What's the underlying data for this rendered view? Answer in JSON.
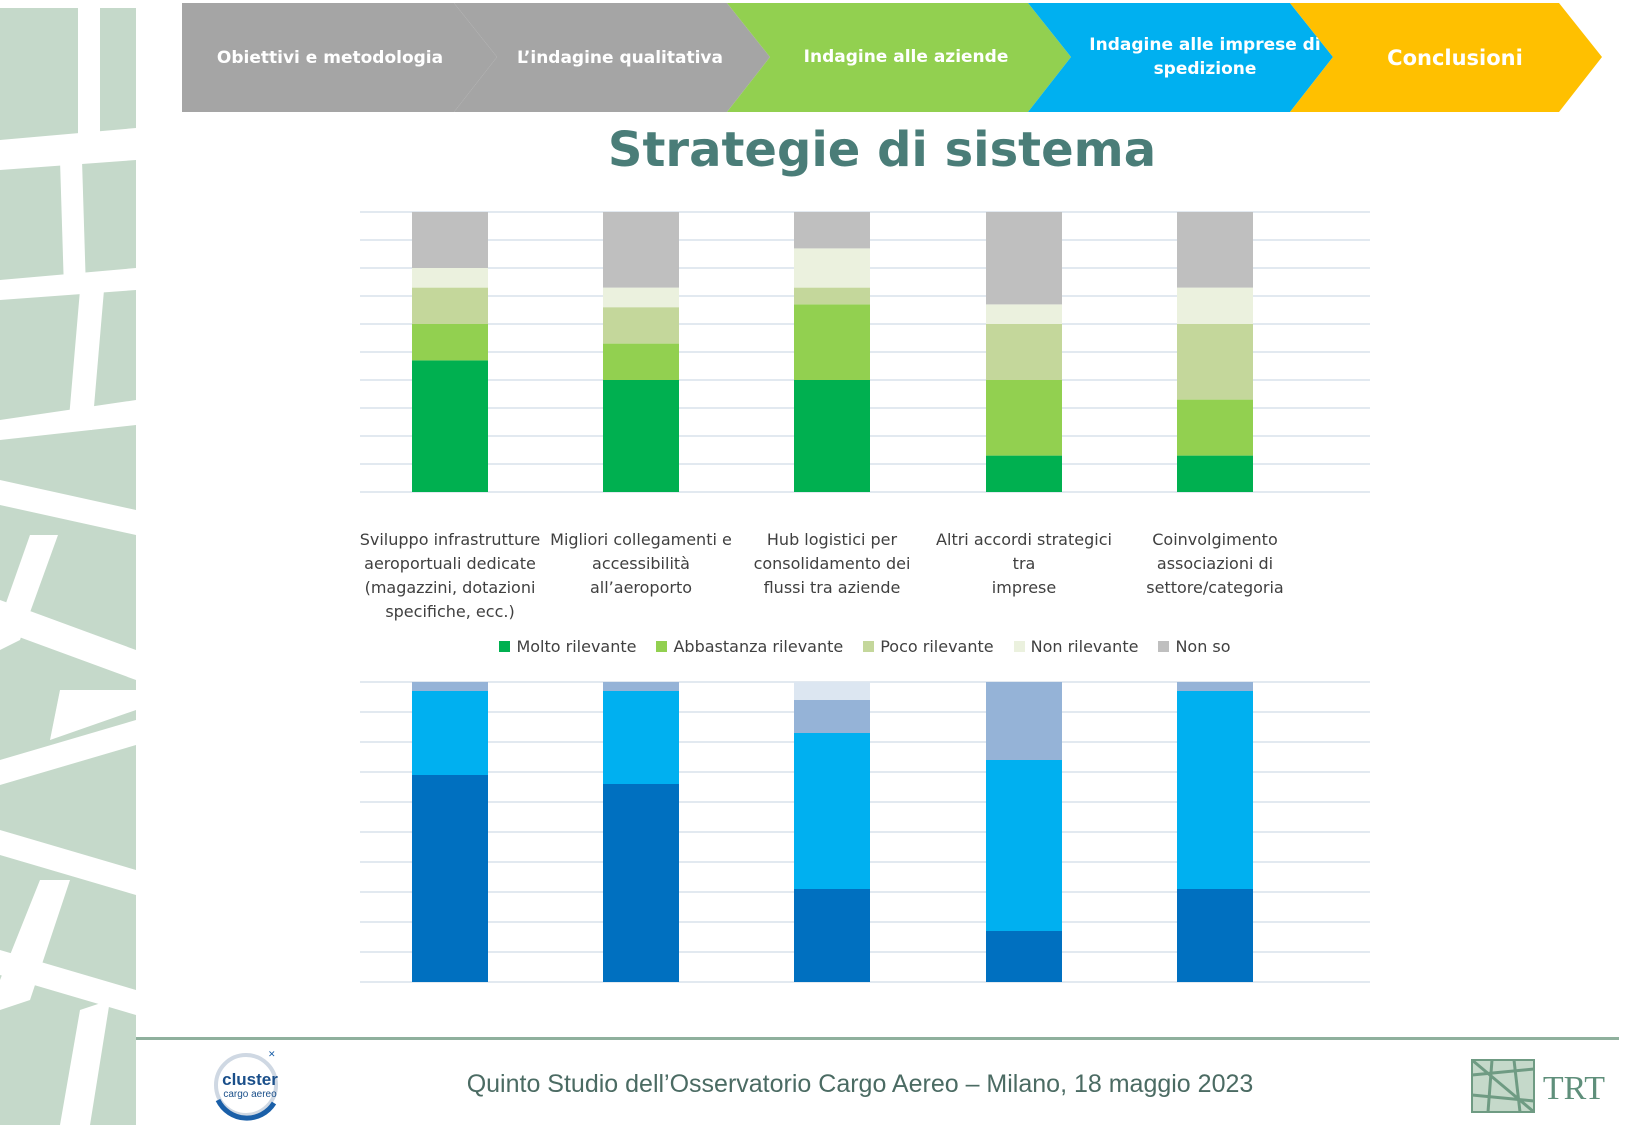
{
  "nav": {
    "steps": [
      {
        "label": "Obiettivi e metodologia",
        "color": "#a5a5a5"
      },
      {
        "label": "L’indagine qualitativa",
        "color": "#a5a5a5"
      },
      {
        "label": "Indagine alle aziende",
        "color": "#92d050"
      },
      {
        "label_line1": "Indagine alle imprese di",
        "label_line2": "spedizione",
        "color": "#00b0f0"
      },
      {
        "label": "Conclusioni",
        "color": "#ffc000"
      }
    ]
  },
  "page_title": "Strategie di sistema",
  "chart_data": [
    {
      "type": "bar",
      "stacked": true,
      "categories": [
        "Sviluppo infrastrutture aeroportuali dedicate (magazzini, dotazioni specifiche, ecc.)",
        "Migliori collegamenti e accessibilità all’aeroporto",
        "Hub logistici per consolidamento dei flussi tra aziende",
        "Altri accordi strategici tra imprese",
        "Coinvolgimento associazioni di settore/categoria"
      ],
      "category_lines": [
        [
          "Sviluppo infrastrutture",
          "aeroportuali dedicate",
          "(magazzini, dotazioni",
          "specifiche, ecc.)"
        ],
        [
          "Migliori collegamenti e",
          "accessibilità",
          "all’aeroporto"
        ],
        [
          "Hub logistici per",
          "consolidamento dei",
          "flussi tra aziende"
        ],
        [
          "Altri accordi strategici tra",
          "imprese"
        ],
        [
          "Coinvolgimento",
          "associazioni di",
          "settore/categoria"
        ]
      ],
      "series": [
        {
          "name": "Molto rilevante",
          "color": "#00b050",
          "values": [
            47,
            40,
            40,
            13,
            13
          ]
        },
        {
          "name": "Abbastanza rilevante",
          "color": "#92d050",
          "values": [
            13,
            13,
            27,
            27,
            20
          ]
        },
        {
          "name": "Poco rilevante",
          "color": "#c4d79b",
          "values": [
            13,
            13,
            6,
            20,
            27
          ]
        },
        {
          "name": "Non rilevante",
          "color": "#ebf1de",
          "values": [
            7,
            7,
            14,
            7,
            13
          ]
        },
        {
          "name": "Non so",
          "color": "#bfbfbf",
          "values": [
            20,
            27,
            13,
            33,
            27
          ]
        }
      ],
      "ylim": [
        0,
        100
      ],
      "grid": true,
      "legend": "bottom"
    },
    {
      "type": "bar",
      "stacked": true,
      "categories": [
        "Sviluppo infrastrutture aeroportuali dedicate (magazzini, dotazioni specifiche, ecc.)",
        "Migliori collegamenti e accessibilità all’aeroporto",
        "Hub logistici per consolidamento dei flussi tra aziende",
        "Altri accordi strategici tra imprese",
        "Coinvolgimento associazioni di settore/categoria"
      ],
      "series": [
        {
          "color": "#0070c0",
          "values": [
            69,
            66,
            31,
            17,
            31
          ]
        },
        {
          "color": "#00b0f0",
          "values": [
            28,
            31,
            52,
            57,
            66
          ]
        },
        {
          "color": "#95b3d7",
          "values": [
            0,
            0,
            11,
            23,
            0
          ]
        },
        {
          "color": "#dce6f1",
          "values": [
            0,
            0,
            6,
            0,
            0
          ]
        },
        {
          "color": "#95b3d7",
          "values": [
            3,
            3,
            0,
            3,
            3
          ]
        }
      ],
      "ylim": [
        0,
        100
      ],
      "grid": true
    }
  ],
  "footer": {
    "text": "Quinto Studio dell’Osservatorio Cargo Aereo – Milano, 18 maggio 2023",
    "cluster_logo_text": "cluster",
    "cluster_logo_subtext": "cargo aereo",
    "trt_logo_text": "TRT"
  }
}
